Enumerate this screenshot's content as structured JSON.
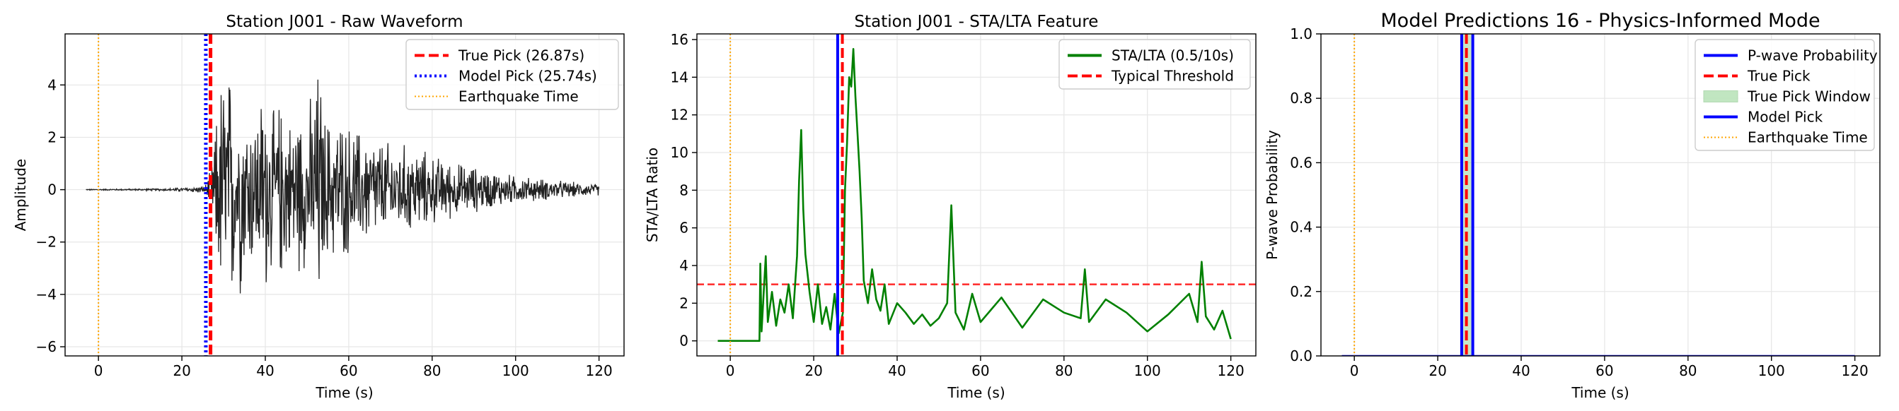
{
  "chart_data": [
    {
      "type": "line",
      "title": "Station J001 - Raw Waveform",
      "xlabel": "Time (s)",
      "ylabel": "Amplitude",
      "xlim": [
        -8,
        126
      ],
      "ylim": [
        -6.35,
        5.95
      ],
      "xticks": [
        0,
        20,
        40,
        60,
        80,
        100,
        120
      ],
      "xtick_labels": [
        "0",
        "20",
        "40",
        "60",
        "80",
        "100",
        "120"
      ],
      "yticks": [
        -6,
        -4,
        -2,
        0,
        2,
        4
      ],
      "ytick_labels": [
        "−6",
        "−4",
        "−2",
        "0",
        "2",
        "4"
      ],
      "grid": true,
      "legend_position": "upper right",
      "legend": [
        {
          "label": "True Pick (26.87s)",
          "color": "#ff0000",
          "style": "dashed"
        },
        {
          "label": "Model Pick (25.74s)",
          "color": "#0000ff",
          "style": "dotted"
        },
        {
          "label": "Earthquake Time",
          "color": "#ffa500",
          "style": "dotted"
        }
      ],
      "vlines": [
        {
          "x": 0,
          "color": "#ffa500",
          "style": "dotted"
        },
        {
          "x": 25.74,
          "color": "#0000ff",
          "style": "dotted"
        },
        {
          "x": 26.87,
          "color": "#ff0000",
          "style": "dashed"
        }
      ],
      "series": [
        {
          "color": "#222222",
          "x": [
            -3,
            17,
            25,
            26,
            27,
            28,
            29,
            30,
            31,
            32,
            33,
            34,
            35,
            36,
            37,
            38,
            40,
            42,
            44,
            46,
            48,
            50,
            52,
            53,
            54,
            56,
            58,
            60,
            65,
            70,
            75,
            80,
            85,
            90,
            95,
            100,
            105,
            110,
            115,
            120
          ],
          "y_envelope": [
            0.02,
            0.05,
            0.15,
            0.3,
            0.9,
            2.5,
            4.6,
            5.3,
            5.0,
            5.3,
            3.0,
            4.5,
            3.5,
            4.0,
            3.2,
            3.6,
            4.6,
            3.3,
            4.0,
            3.0,
            3.7,
            3.2,
            4.8,
            5.6,
            3.3,
            3.0,
            3.1,
            2.8,
            2.4,
            2.0,
            1.9,
            1.5,
            1.2,
            1.0,
            0.8,
            0.6,
            0.5,
            0.4,
            0.3,
            0.25
          ]
        }
      ]
    },
    {
      "type": "line",
      "title": "Station J001 - STA/LTA Feature",
      "xlabel": "Time (s)",
      "ylabel": "STA/LTA Ratio",
      "xlim": [
        -8,
        126
      ],
      "ylim": [
        -0.8,
        16.3
      ],
      "xticks": [
        0,
        20,
        40,
        60,
        80,
        100,
        120
      ],
      "xtick_labels": [
        "0",
        "20",
        "40",
        "60",
        "80",
        "100",
        "120"
      ],
      "yticks": [
        0,
        2,
        4,
        6,
        8,
        10,
        12,
        14,
        16
      ],
      "ytick_labels": [
        "0",
        "2",
        "4",
        "6",
        "8",
        "10",
        "12",
        "14",
        "16"
      ],
      "grid": true,
      "legend_position": "upper right",
      "legend": [
        {
          "label": "STA/LTA (0.5/10s)",
          "color": "#008000",
          "style": "solid"
        },
        {
          "label": "Typical Threshold",
          "color": "#ff0000",
          "style": "dashed"
        }
      ],
      "hlines": [
        {
          "y": 3,
          "color": "#ff3333",
          "style": "dashed"
        }
      ],
      "vlines": [
        {
          "x": 0,
          "color": "#ffa500",
          "style": "dotted"
        },
        {
          "x": 25.74,
          "color": "#0000ff",
          "style": "solid"
        },
        {
          "x": 26.87,
          "color": "#ff0000",
          "style": "dashed"
        }
      ],
      "series": [
        {
          "name": "STA/LTA (0.5/10s)",
          "color": "#008000",
          "x": [
            -3,
            7,
            7.2,
            7.5,
            8,
            8.5,
            9,
            10,
            11,
            12,
            13,
            14,
            15,
            16,
            16.5,
            17,
            17.5,
            18,
            19,
            20,
            21,
            22,
            23,
            24,
            25,
            26,
            27,
            27.5,
            28,
            28.5,
            29,
            29.5,
            30,
            30.5,
            31,
            31.5,
            32,
            33,
            34,
            35,
            36,
            37,
            38,
            40,
            42,
            44,
            46,
            48,
            50,
            52,
            53,
            54,
            56,
            58,
            60,
            65,
            70,
            75,
            80,
            84,
            85,
            86,
            90,
            95,
            100,
            105,
            110,
            112,
            113,
            114,
            116,
            118,
            120
          ],
          "y": [
            0,
            0,
            4.1,
            0.5,
            2.5,
            4.5,
            1.0,
            2.6,
            0.8,
            2.2,
            1.5,
            3.0,
            1.2,
            4.5,
            8.5,
            11.2,
            7.0,
            4.6,
            2.6,
            1.0,
            3.0,
            0.9,
            1.8,
            0.6,
            2.5,
            0.4,
            1.5,
            8.0,
            10.5,
            14.0,
            13.5,
            15.5,
            13.0,
            11.0,
            9.0,
            6.5,
            3.2,
            2.0,
            3.8,
            2.2,
            1.6,
            3.0,
            0.9,
            2.0,
            1.5,
            0.9,
            1.4,
            0.8,
            1.2,
            2.0,
            7.2,
            1.5,
            0.6,
            2.5,
            1.0,
            2.3,
            0.7,
            2.2,
            1.5,
            1.2,
            3.8,
            1.0,
            2.2,
            1.5,
            0.5,
            1.4,
            2.5,
            1.0,
            4.2,
            1.3,
            0.6,
            1.6,
            0.1
          ]
        }
      ]
    },
    {
      "type": "line",
      "title": "Model Predictions 16 - Physics-Informed Mode",
      "xlabel": "Time (s)",
      "ylabel": "P-wave Probability",
      "xlim": [
        -8,
        126
      ],
      "ylim": [
        0,
        1
      ],
      "xticks": [
        0,
        20,
        40,
        60,
        80,
        100,
        120
      ],
      "xtick_labels": [
        "0",
        "20",
        "40",
        "60",
        "80",
        "100",
        "120"
      ],
      "yticks": [
        0.0,
        0.2,
        0.4,
        0.6,
        0.8,
        1.0
      ],
      "ytick_labels": [
        "0.0",
        "0.2",
        "0.4",
        "0.6",
        "0.8",
        "1.0"
      ],
      "grid": true,
      "legend_position": "upper right",
      "legend": [
        {
          "label": "P-wave Probability",
          "color": "#0000ff",
          "style": "solid"
        },
        {
          "label": "True Pick",
          "color": "#ff0000",
          "style": "dashed"
        },
        {
          "label": "True Pick Window",
          "color": "#99d699",
          "style": "patch"
        },
        {
          "label": "Model Pick",
          "color": "#0000ff",
          "style": "solid"
        },
        {
          "label": "Earthquake Time",
          "color": "#ffa500",
          "style": "dotted"
        }
      ],
      "spans": [
        {
          "x0": 25.8,
          "x1": 28.4,
          "color": "#99d699"
        }
      ],
      "vlines": [
        {
          "x": 0,
          "color": "#ffa500",
          "style": "dotted"
        },
        {
          "x": 25.74,
          "color": "#0000ff",
          "style": "solid"
        },
        {
          "x": 26.87,
          "color": "#ff0000",
          "style": "dashed"
        },
        {
          "x": 28.4,
          "color": "#0000ff",
          "style": "solid"
        }
      ],
      "series": [
        {
          "name": "P-wave Probability",
          "color": "#0000ff",
          "x": [
            -3,
            120
          ],
          "y": [
            0,
            0
          ]
        }
      ]
    }
  ]
}
